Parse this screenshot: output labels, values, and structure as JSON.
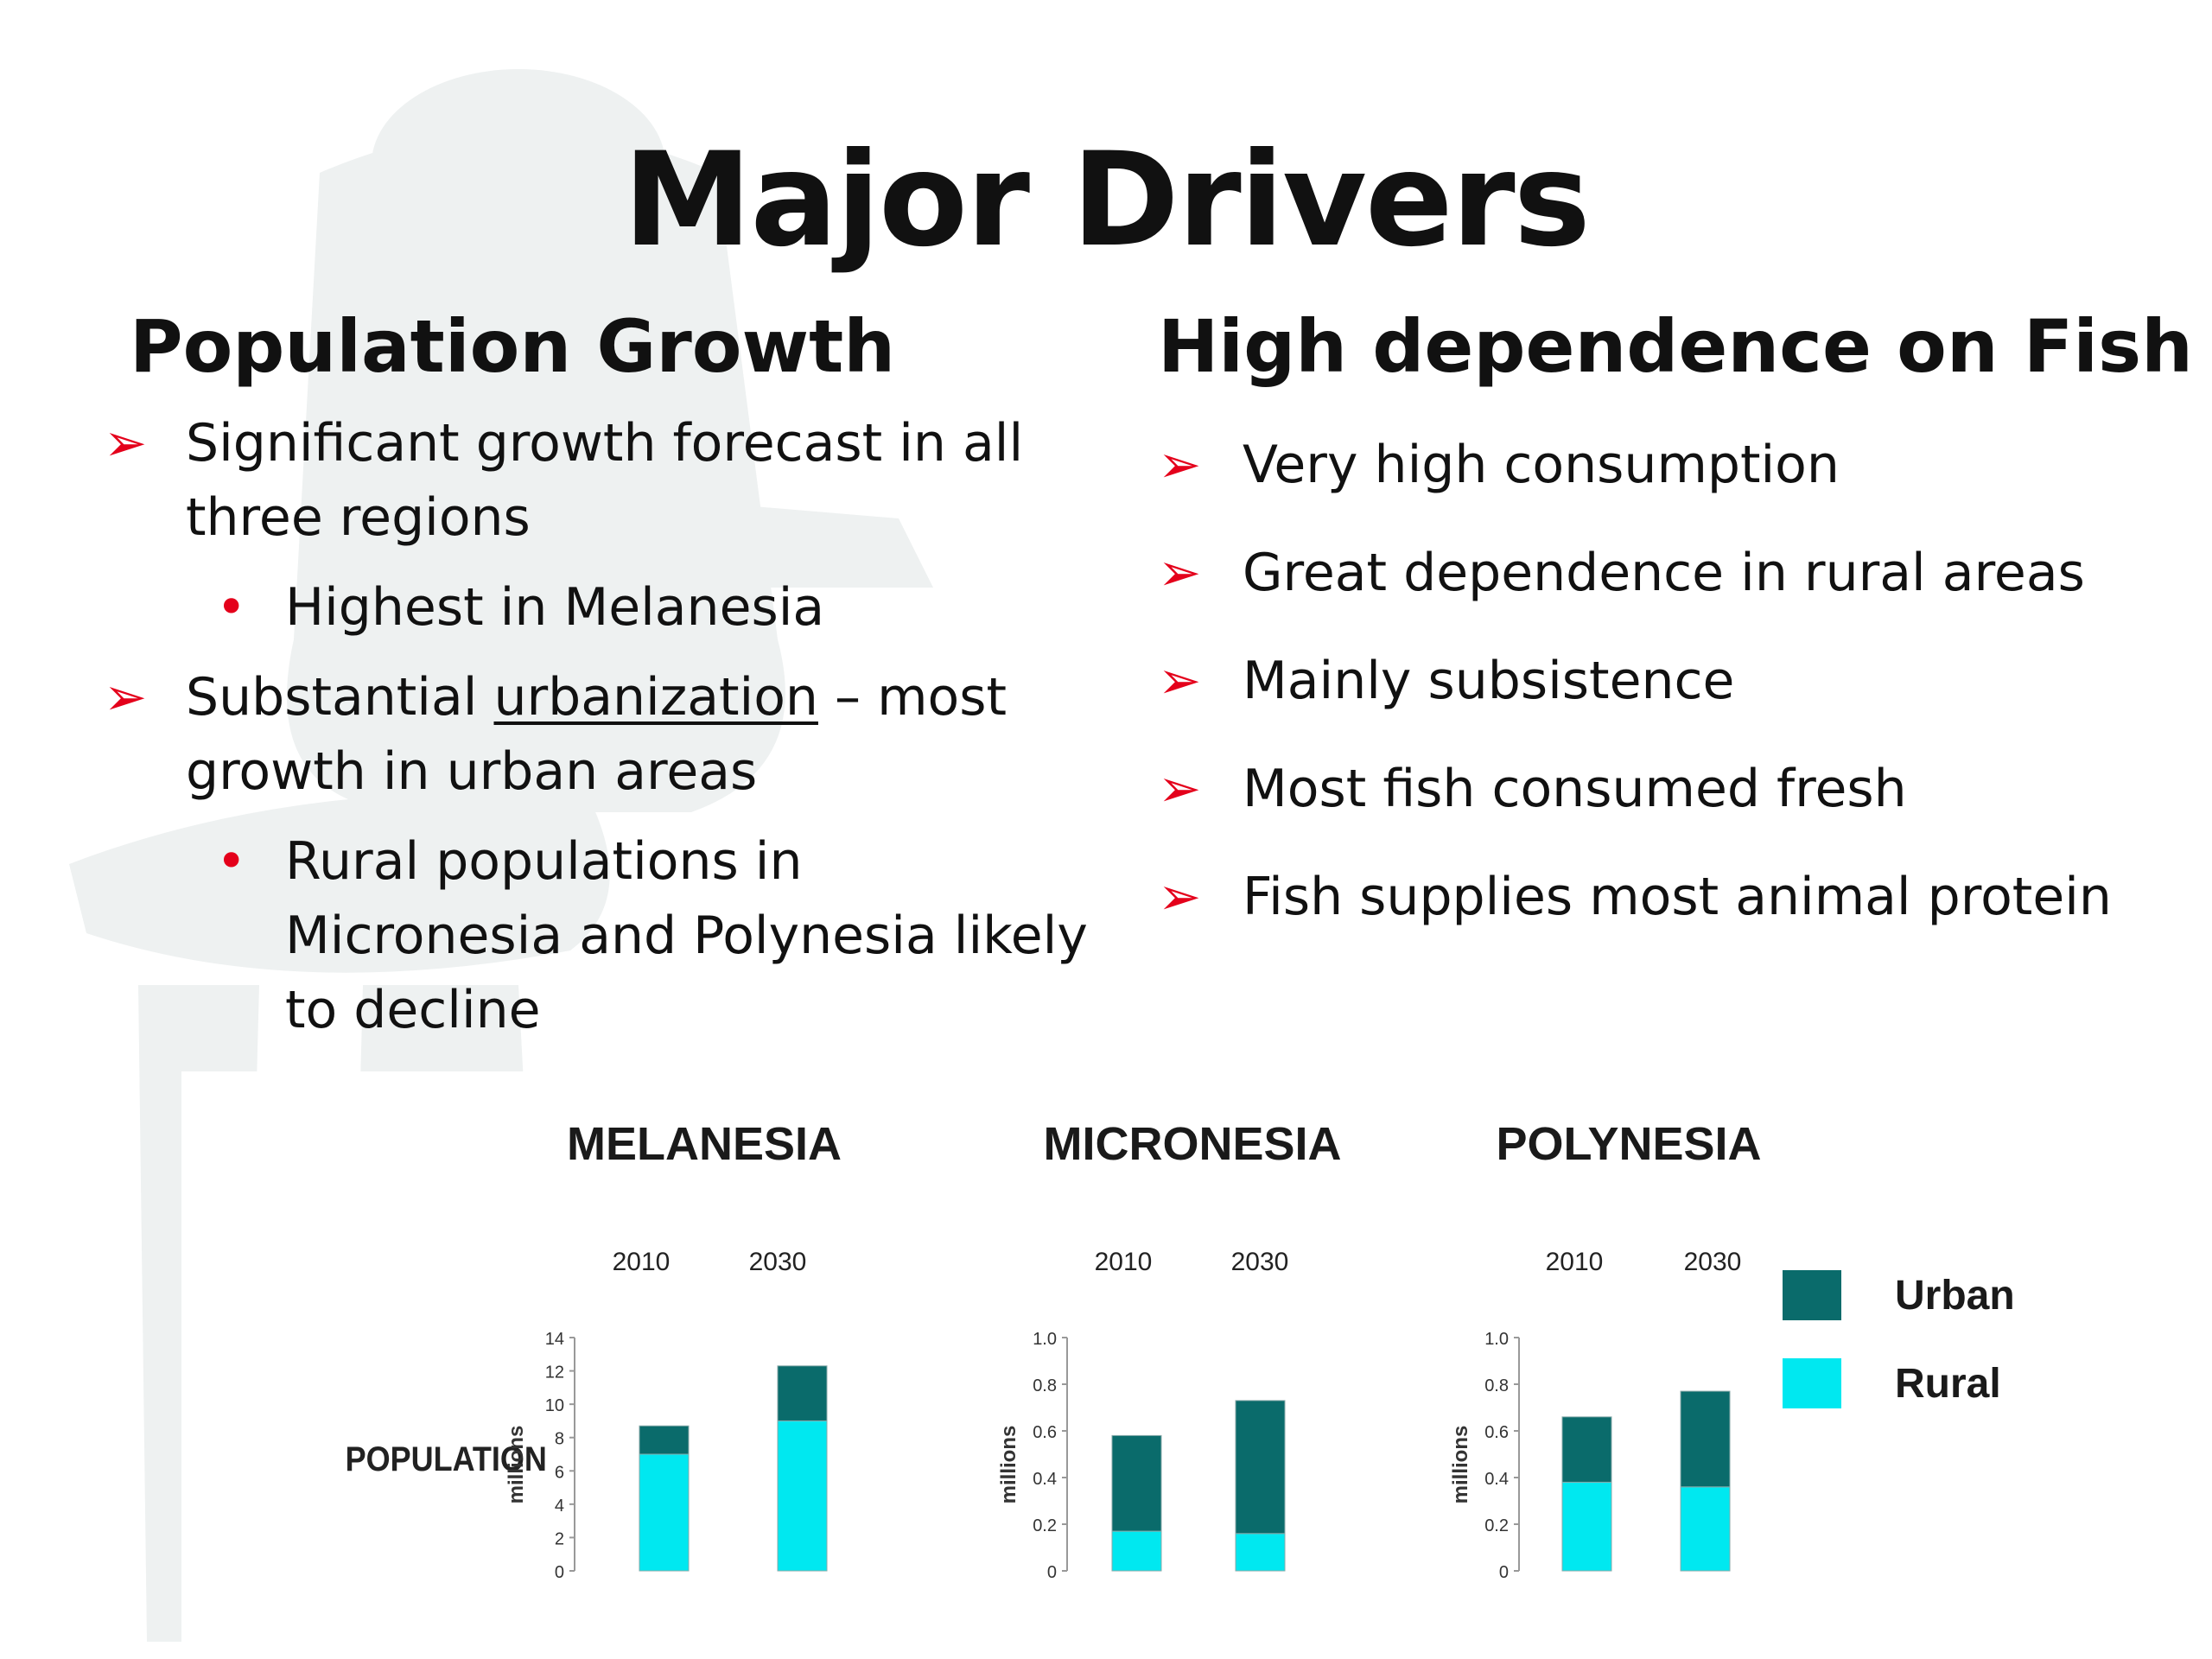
{
  "slide": {
    "title": "Major Drivers",
    "left": {
      "heading": "Population Growth",
      "bullet1": {
        "line1": "Significant growth forecast in all",
        "line2": "three regions",
        "sub": "Highest in Melanesia"
      },
      "bullet2": {
        "line1_prefix": "Substantial ",
        "line1_underlined": "urbanization",
        "line1_suffix": " – most",
        "line2": "growth in urban areas",
        "sub_line1": "Rural populations in",
        "sub_line2": "Micronesia and Polynesia likely",
        "sub_line3": "to decline"
      }
    },
    "right": {
      "heading": "High dependence on Fish",
      "bullets": [
        "Very high consumption",
        "Great dependence in rural areas",
        "Mainly subsistence",
        "Most fish consumed fresh",
        "Fish supplies most animal protein"
      ]
    },
    "bullet_color": "#e4001b"
  },
  "chart_data": {
    "type": "bar",
    "stacked": true,
    "row_label": "POPULATION",
    "ylabel": "millions",
    "categories": [
      "2010",
      "2030"
    ],
    "legend": [
      {
        "name": "Urban",
        "color": "#0a6b6b"
      },
      {
        "name": "Rural",
        "color": "#00e8f0"
      }
    ],
    "legend_position": "right",
    "panels": [
      {
        "title": "MELANESIA",
        "ylim": [
          0,
          14
        ],
        "yticks": [
          "0",
          "2",
          "4",
          "6",
          "8",
          "10",
          "12",
          "14"
        ],
        "rural": [
          7.0,
          9.0
        ],
        "urban": [
          1.7,
          3.3
        ]
      },
      {
        "title": "MICRONESIA",
        "ylim": [
          0,
          1.0
        ],
        "yticks": [
          "0",
          "0.2",
          "0.4",
          "0.6",
          "0.8",
          "1.0"
        ],
        "rural": [
          0.17,
          0.16
        ],
        "urban": [
          0.41,
          0.57
        ]
      },
      {
        "title": "POLYNESIA",
        "ylim": [
          0,
          1.0
        ],
        "yticks": [
          "0",
          "0.2",
          "0.4",
          "0.6",
          "0.8",
          "1.0"
        ],
        "rural": [
          0.38,
          0.36
        ],
        "urban": [
          0.28,
          0.41
        ]
      }
    ]
  }
}
